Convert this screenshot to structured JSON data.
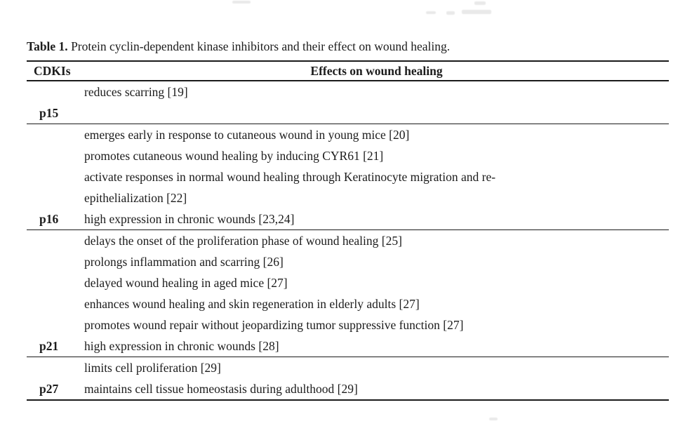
{
  "page": {
    "background": "#ffffff",
    "text_color": "#1c1c1c",
    "rule_color": "#1a1a1a"
  },
  "caption": {
    "label": "Table 1.",
    "text": " Protein cyclin-dependent kinase inhibitors and their effect on wound healing."
  },
  "table": {
    "columns": [
      {
        "header": "CDKIs"
      },
      {
        "header": "Effects on wound healing"
      }
    ],
    "rows": [
      {
        "label": "p15",
        "effects": [
          "reduces scarring [19]"
        ]
      },
      {
        "label": "p16",
        "effects": [
          "emerges early in response to cutaneous wound in young mice [20]",
          "promotes cutaneous wound healing by inducing CYR61 [21]",
          "activate responses in normal wound healing through Keratinocyte migration and re-",
          "epithelialization [22]",
          "high expression in chronic wounds [23,24]"
        ]
      },
      {
        "label": "p21",
        "effects": [
          "delays the onset of the proliferation phase of wound healing [25]",
          "prolongs inflammation and scarring [26]",
          "delayed wound healing in aged mice [27]",
          "enhances wound healing and skin regeneration in elderly adults [27]",
          "promotes wound repair without jeopardizing tumor suppressive function [27]",
          "high expression in chronic wounds [28]"
        ]
      },
      {
        "label": "p27",
        "effects": [
          "limits cell proliferation [29]",
          "maintains cell tissue homeostasis during adulthood [29]"
        ]
      }
    ]
  }
}
